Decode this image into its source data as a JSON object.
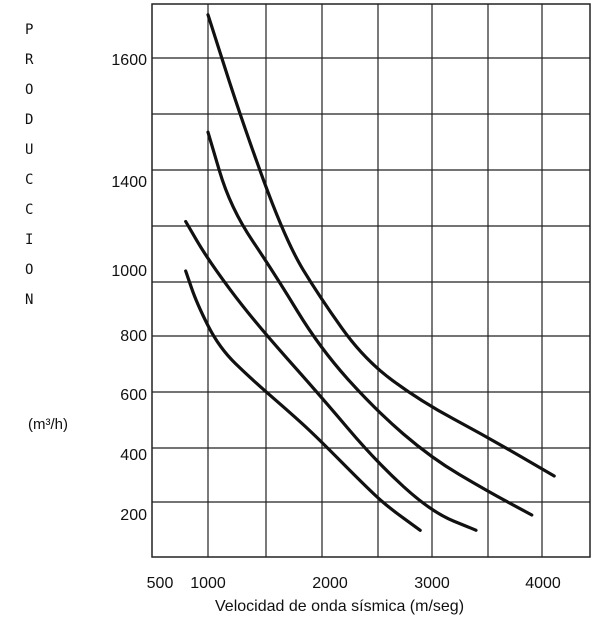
{
  "chart_data": {
    "type": "line",
    "ylabel_letters": [
      "P",
      "R",
      "O",
      "D",
      "U",
      "C",
      "C",
      "I",
      "O",
      "N"
    ],
    "yunit": "(m³/h)",
    "xlabel": "Velocidad de onda sísmica (m/seg)",
    "x_ticks": [
      {
        "value": 500,
        "label": "500"
      },
      {
        "value": 1000,
        "label": "1000"
      },
      {
        "value": 2000,
        "label": "2000"
      },
      {
        "value": 3000,
        "label": "3000"
      },
      {
        "value": 4000,
        "label": "4000"
      }
    ],
    "y_ticks": [
      "1600",
      "1400",
      "1000",
      "800",
      "600",
      "400",
      "200"
    ],
    "grid": true,
    "series": [
      {
        "points": [
          [
            800,
            1000
          ],
          [
            900,
            900
          ],
          [
            1100,
            760
          ],
          [
            1400,
            650
          ],
          [
            1800,
            520
          ],
          [
            2000,
            450
          ],
          [
            2400,
            300
          ],
          [
            2600,
            230
          ],
          [
            2900,
            150
          ]
        ]
      },
      {
        "points": [
          [
            800,
            1220
          ],
          [
            1000,
            1050
          ],
          [
            1400,
            850
          ],
          [
            2000,
            600
          ],
          [
            2500,
            380
          ],
          [
            3000,
            210
          ],
          [
            3400,
            150
          ]
        ]
      },
      {
        "points": [
          [
            1000,
            1480
          ],
          [
            1200,
            1280
          ],
          [
            1600,
            990
          ],
          [
            2000,
            760
          ],
          [
            2500,
            550
          ],
          [
            3000,
            390
          ],
          [
            3500,
            280
          ],
          [
            3900,
            200
          ]
        ]
      },
      {
        "points": [
          [
            1000,
            1750
          ],
          [
            1300,
            1500
          ],
          [
            1700,
            1130
          ],
          [
            2000,
            920
          ],
          [
            2400,
            720
          ],
          [
            2900,
            580
          ],
          [
            3500,
            460
          ],
          [
            4100,
            330
          ]
        ]
      }
    ]
  }
}
